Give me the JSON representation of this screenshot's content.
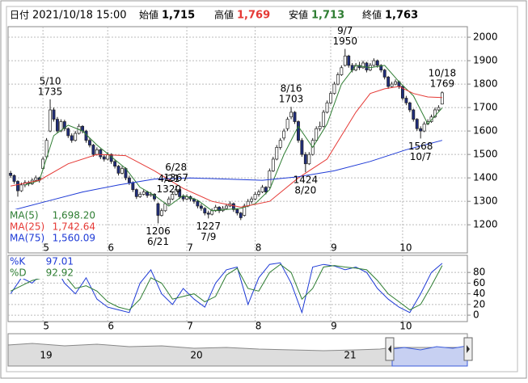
{
  "header": {
    "date_label": "日付",
    "datetime": "2021/10/18 15:00",
    "open_label": "始値",
    "open": "1,715",
    "high_label": "高値",
    "high": "1,769",
    "low_label": "安値",
    "low": "1,713",
    "close_label": "終値",
    "close": "1,763"
  },
  "chart_data": [
    {
      "type": "candlestick",
      "candles": [
        [
          1420,
          1430,
          1400,
          1410
        ],
        [
          1410,
          1415,
          1375,
          1385
        ],
        [
          1385,
          1390,
          1320,
          1345
        ],
        [
          1345,
          1380,
          1340,
          1370
        ],
        [
          1370,
          1390,
          1360,
          1380
        ],
        [
          1380,
          1388,
          1365,
          1375
        ],
        [
          1375,
          1398,
          1370,
          1390
        ],
        [
          1390,
          1410,
          1385,
          1400
        ],
        [
          1400,
          1405,
          1380,
          1390
        ],
        [
          1440,
          1490,
          1435,
          1480
        ],
        [
          1490,
          1570,
          1480,
          1560
        ],
        [
          1600,
          1735,
          1595,
          1690
        ],
        [
          1690,
          1700,
          1640,
          1650
        ],
        [
          1650,
          1660,
          1590,
          1600
        ],
        [
          1600,
          1650,
          1595,
          1640
        ],
        [
          1640,
          1648,
          1600,
          1610
        ],
        [
          1610,
          1615,
          1570,
          1580
        ],
        [
          1580,
          1590,
          1550,
          1560
        ],
        [
          1560,
          1600,
          1555,
          1590
        ],
        [
          1590,
          1630,
          1585,
          1620
        ],
        [
          1620,
          1625,
          1590,
          1600
        ],
        [
          1600,
          1605,
          1550,
          1560
        ],
        [
          1560,
          1570,
          1530,
          1540
        ],
        [
          1540,
          1545,
          1490,
          1500
        ],
        [
          1500,
          1530,
          1495,
          1520
        ],
        [
          1520,
          1525,
          1480,
          1490
        ],
        [
          1490,
          1500,
          1470,
          1480
        ],
        [
          1480,
          1510,
          1475,
          1500
        ],
        [
          1500,
          1505,
          1460,
          1470
        ],
        [
          1470,
          1478,
          1440,
          1450
        ],
        [
          1450,
          1455,
          1410,
          1420
        ],
        [
          1420,
          1450,
          1415,
          1440
        ],
        [
          1440,
          1445,
          1390,
          1400
        ],
        [
          1400,
          1410,
          1370,
          1380
        ],
        [
          1380,
          1385,
          1340,
          1350
        ],
        [
          1350,
          1355,
          1310,
          1320
        ],
        [
          1320,
          1340,
          1315,
          1330
        ],
        [
          1330,
          1350,
          1325,
          1340
        ],
        [
          1340,
          1345,
          1315,
          1325
        ],
        [
          1325,
          1340,
          1320,
          1330
        ],
        [
          1330,
          1335,
          1300,
          1310
        ],
        [
          1290,
          1295,
          1206,
          1240
        ],
        [
          1240,
          1270,
          1235,
          1260
        ],
        [
          1260,
          1295,
          1255,
          1290
        ],
        [
          1290,
          1320,
          1285,
          1310
        ],
        [
          1310,
          1340,
          1305,
          1330
        ],
        [
          1330,
          1367,
          1325,
          1350
        ],
        [
          1350,
          1355,
          1310,
          1320
        ],
        [
          1320,
          1330,
          1300,
          1310
        ],
        [
          1310,
          1330,
          1305,
          1320
        ],
        [
          1320,
          1325,
          1300,
          1310
        ],
        [
          1310,
          1315,
          1290,
          1300
        ],
        [
          1300,
          1305,
          1270,
          1280
        ],
        [
          1280,
          1290,
          1260,
          1270
        ],
        [
          1270,
          1275,
          1240,
          1250
        ],
        [
          1250,
          1260,
          1227,
          1245
        ],
        [
          1245,
          1270,
          1240,
          1260
        ],
        [
          1260,
          1285,
          1255,
          1275
        ],
        [
          1275,
          1280,
          1250,
          1260
        ],
        [
          1260,
          1280,
          1255,
          1270
        ],
        [
          1270,
          1290,
          1265,
          1280
        ],
        [
          1280,
          1300,
          1275,
          1290
        ],
        [
          1290,
          1295,
          1255,
          1265
        ],
        [
          1265,
          1270,
          1240,
          1250
        ],
        [
          1250,
          1255,
          1220,
          1230
        ],
        [
          1240,
          1290,
          1235,
          1280
        ],
        [
          1280,
          1310,
          1275,
          1300
        ],
        [
          1300,
          1320,
          1290,
          1310
        ],
        [
          1310,
          1340,
          1305,
          1330
        ],
        [
          1330,
          1350,
          1320,
          1340
        ],
        [
          1340,
          1370,
          1335,
          1360
        ],
        [
          1360,
          1365,
          1330,
          1340
        ],
        [
          1360,
          1440,
          1355,
          1430
        ],
        [
          1430,
          1490,
          1425,
          1480
        ],
        [
          1480,
          1540,
          1475,
          1530
        ],
        [
          1530,
          1570,
          1520,
          1560
        ],
        [
          1570,
          1610,
          1560,
          1600
        ],
        [
          1610,
          1660,
          1600,
          1650
        ],
        [
          1660,
          1703,
          1650,
          1680
        ],
        [
          1680,
          1685,
          1630,
          1640
        ],
        [
          1640,
          1645,
          1550,
          1560
        ],
        [
          1560,
          1570,
          1490,
          1500
        ],
        [
          1500,
          1510,
          1424,
          1460
        ],
        [
          1460,
          1510,
          1455,
          1500
        ],
        [
          1500,
          1570,
          1495,
          1560
        ],
        [
          1560,
          1620,
          1555,
          1610
        ],
        [
          1610,
          1640,
          1600,
          1620
        ],
        [
          1620,
          1690,
          1615,
          1680
        ],
        [
          1680,
          1730,
          1675,
          1720
        ],
        [
          1720,
          1770,
          1715,
          1760
        ],
        [
          1760,
          1810,
          1755,
          1800
        ],
        [
          1800,
          1850,
          1795,
          1840
        ],
        [
          1840,
          1880,
          1835,
          1870
        ],
        [
          1880,
          1950,
          1875,
          1920
        ],
        [
          1920,
          1925,
          1870,
          1880
        ],
        [
          1880,
          1890,
          1850,
          1860
        ],
        [
          1860,
          1890,
          1855,
          1880
        ],
        [
          1880,
          1895,
          1860,
          1870
        ],
        [
          1870,
          1900,
          1865,
          1890
        ],
        [
          1890,
          1895,
          1850,
          1860
        ],
        [
          1860,
          1890,
          1855,
          1880
        ],
        [
          1880,
          1910,
          1875,
          1900
        ],
        [
          1900,
          1905,
          1870,
          1880
        ],
        [
          1880,
          1885,
          1850,
          1860
        ],
        [
          1860,
          1865,
          1820,
          1830
        ],
        [
          1830,
          1835,
          1780,
          1790
        ],
        [
          1790,
          1810,
          1785,
          1800
        ],
        [
          1800,
          1820,
          1795,
          1810
        ],
        [
          1810,
          1815,
          1780,
          1790
        ],
        [
          1790,
          1795,
          1730,
          1740
        ],
        [
          1740,
          1750,
          1710,
          1720
        ],
        [
          1720,
          1725,
          1680,
          1690
        ],
        [
          1690,
          1695,
          1640,
          1650
        ],
        [
          1650,
          1655,
          1600,
          1610
        ],
        [
          1610,
          1620,
          1568,
          1600
        ],
        [
          1600,
          1640,
          1595,
          1630
        ],
        [
          1630,
          1650,
          1625,
          1640
        ],
        [
          1640,
          1670,
          1635,
          1660
        ],
        [
          1660,
          1700,
          1655,
          1690
        ],
        [
          1690,
          1710,
          1685,
          1700
        ],
        [
          1715,
          1769,
          1713,
          1763
        ]
      ],
      "up_color": "#ffffff",
      "down_color": "#1f2d7a",
      "series": [
        {
          "name": "MA(5)",
          "color": "#2e7d32",
          "x": [
            4,
            8,
            12,
            16,
            20,
            24,
            28,
            32,
            36,
            40,
            44,
            48,
            52,
            56,
            60,
            64,
            68,
            72,
            76,
            80,
            84,
            88,
            92,
            96,
            100,
            104,
            108,
            112,
            116,
            120
          ],
          "values": [
            1370,
            1389,
            1580,
            1625,
            1600,
            1540,
            1490,
            1440,
            1360,
            1325,
            1280,
            1325,
            1305,
            1260,
            1265,
            1270,
            1290,
            1350,
            1500,
            1620,
            1530,
            1630,
            1800,
            1880,
            1870,
            1880,
            1810,
            1750,
            1630,
            1698.2
          ],
          "value_label": "1,698.20"
        },
        {
          "name": "MA(25)",
          "color": "#e53935",
          "x": [
            0,
            8,
            16,
            24,
            32,
            40,
            48,
            56,
            64,
            72,
            80,
            88,
            96,
            100,
            104,
            108,
            112,
            116,
            120
          ],
          "values": [
            1365,
            1390,
            1460,
            1500,
            1495,
            1430,
            1355,
            1300,
            1275,
            1300,
            1400,
            1480,
            1680,
            1760,
            1780,
            1790,
            1760,
            1745,
            1742.64
          ],
          "value_label": "1,742.64"
        },
        {
          "name": "MA(75)",
          "color": "#1e3ad6",
          "x": [
            0,
            10,
            20,
            30,
            40,
            50,
            60,
            70,
            80,
            90,
            100,
            110,
            120
          ],
          "values": [
            1260,
            1300,
            1340,
            1370,
            1395,
            1400,
            1395,
            1390,
            1405,
            1430,
            1470,
            1520,
            1560.09
          ],
          "value_label": "1,560.09"
        }
      ],
      "annotations": [
        {
          "date": "4/21",
          "price": 1320
        },
        {
          "date": "5/10",
          "price": 1735
        },
        {
          "date": "6/21",
          "price": 1206
        },
        {
          "date": "6/28",
          "price": 1367
        },
        {
          "date": "7/9",
          "price": 1227
        },
        {
          "date": "8/16",
          "price": 1703
        },
        {
          "date": "8/20",
          "price": 1424
        },
        {
          "date": "9/7",
          "price": 1950
        },
        {
          "date": "10/7",
          "price": 1568
        },
        {
          "date": "10/18",
          "price": 1769
        }
      ],
      "xlim": [
        -0.7,
        127
      ],
      "xticks": [
        {
          "value": 9,
          "label": "5"
        },
        {
          "value": 27,
          "label": "6"
        },
        {
          "value": 49,
          "label": "7"
        },
        {
          "value": 68,
          "label": "8"
        },
        {
          "value": 89,
          "label": "9"
        },
        {
          "value": 109,
          "label": "10"
        }
      ],
      "ylim": [
        1080,
        2045
      ],
      "yticks": [
        1200,
        1300,
        1400,
        1500,
        1600,
        1700,
        1800,
        1900,
        2000
      ],
      "grid": true
    },
    {
      "type": "line",
      "x": [
        0,
        3,
        6,
        9,
        12,
        15,
        18,
        21,
        24,
        27,
        30,
        33,
        36,
        39,
        42,
        45,
        48,
        51,
        54,
        57,
        60,
        63,
        66,
        69,
        72,
        75,
        78,
        81,
        84,
        87,
        90,
        93,
        96,
        99,
        102,
        105,
        108,
        111,
        114,
        117,
        120
      ],
      "series": [
        {
          "name": "%K",
          "color": "#1e3ad6",
          "values": [
            40,
            70,
            60,
            80,
            95,
            60,
            40,
            70,
            30,
            15,
            10,
            5,
            60,
            85,
            40,
            20,
            50,
            30,
            15,
            60,
            85,
            90,
            20,
            70,
            95,
            98,
            60,
            5,
            90,
            95,
            92,
            85,
            90,
            80,
            50,
            30,
            15,
            5,
            40,
            80,
            97.01
          ]
        },
        {
          "name": "%D",
          "color": "#2e7d32",
          "values": [
            45,
            55,
            65,
            70,
            85,
            75,
            50,
            55,
            45,
            25,
            15,
            10,
            30,
            70,
            60,
            30,
            35,
            40,
            25,
            35,
            75,
            88,
            50,
            45,
            80,
            95,
            80,
            30,
            50,
            90,
            93,
            90,
            88,
            85,
            65,
            40,
            25,
            10,
            20,
            55,
            92.92
          ]
        }
      ],
      "xlim": [
        -0.7,
        127
      ],
      "xticks": [
        {
          "value": 9,
          "label": "5"
        },
        {
          "value": 27,
          "label": "6"
        },
        {
          "value": 49,
          "label": "7"
        },
        {
          "value": 68,
          "label": "8"
        },
        {
          "value": 89,
          "label": "9"
        },
        {
          "value": 109,
          "label": "10"
        }
      ],
      "ylim": [
        -12,
        112
      ],
      "yticks": [
        0,
        20,
        40,
        60,
        80
      ],
      "grid": true
    }
  ],
  "navigator": {
    "labels": [
      "19",
      "20",
      "21"
    ]
  }
}
